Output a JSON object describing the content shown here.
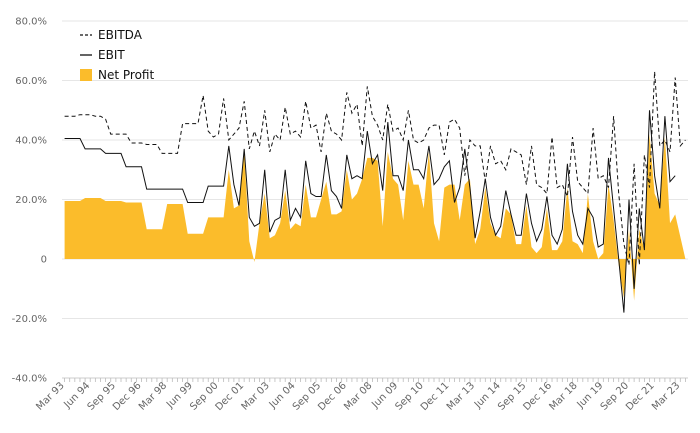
{
  "chart_data": {
    "type": "line",
    "title": "",
    "xlabel": "",
    "ylabel": "",
    "y_unit": "%",
    "ylim": [
      -40,
      80
    ],
    "y_ticks": [
      -40,
      -20,
      0,
      20,
      40,
      60,
      80
    ],
    "y_tick_labels": [
      "-40.0%",
      "-20.0%",
      "0",
      "20.0%",
      "40.0%",
      "60.0%",
      "80.0%"
    ],
    "grid": true,
    "legend_position": "top-left",
    "x_tick_labels": [
      "Mar 93",
      "Jun 94",
      "Sep 95",
      "Dec 96",
      "Mar 98",
      "Jun 99",
      "Sep 00",
      "Dec 01",
      "Mar 03",
      "Jun 04",
      "Sep 05",
      "Dec 06",
      "Mar 08",
      "Jun 09",
      "Sep 10",
      "Dec 11",
      "Mar 13",
      "Jun 14",
      "Sep 15",
      "Dec 16",
      "Mar 18",
      "Jun 19",
      "Sep 20",
      "Dec 21",
      "Mar 23"
    ],
    "x_start": "Mar 93",
    "x_frequency": "quarterly",
    "series": [
      {
        "name": "EBITDA",
        "style": "dashed",
        "color": "#111111",
        "values": [
          48,
          48,
          48,
          48.5,
          48.5,
          48.5,
          48,
          48,
          47,
          42,
          42,
          42,
          42,
          39,
          39,
          39,
          38.5,
          38.5,
          38.5,
          35.5,
          35.5,
          35.5,
          35.5,
          45.5,
          45.5,
          45.5,
          45.5,
          55,
          43,
          41,
          42,
          54,
          40,
          42,
          44,
          53,
          37,
          43,
          38,
          50,
          36,
          42,
          40,
          51,
          42,
          43,
          41,
          53,
          44,
          45,
          36,
          49,
          43,
          42,
          40,
          56,
          49,
          52,
          38,
          58,
          48,
          45,
          40,
          52,
          43,
          44,
          40,
          50,
          40,
          39,
          40,
          44,
          45,
          45,
          35,
          46,
          47,
          44,
          28,
          40,
          38,
          38,
          26,
          38,
          32,
          33,
          30,
          37,
          36,
          35,
          25,
          38,
          25,
          24,
          22,
          41,
          24,
          25,
          21,
          41,
          26,
          24,
          22,
          44,
          27,
          28,
          24,
          48,
          22,
          5,
          -2,
          32,
          -2,
          35,
          24,
          63,
          38,
          40,
          36,
          61,
          38,
          40
        ]
      },
      {
        "name": "EBIT",
        "style": "solid",
        "color": "#111111",
        "values": [
          40.5,
          40.5,
          40.5,
          40.5,
          37,
          37,
          37,
          37,
          35.5,
          35.5,
          35.5,
          35.5,
          31,
          31,
          31,
          31,
          23.5,
          23.5,
          23.5,
          23.5,
          23.5,
          23.5,
          23.5,
          23.5,
          19,
          19,
          19,
          19,
          24.5,
          24.5,
          24.5,
          24.5,
          38,
          25,
          18,
          37,
          14,
          11,
          12,
          30,
          9,
          13,
          14,
          30,
          13,
          17,
          14,
          33,
          22,
          21,
          21,
          35,
          23,
          21,
          17,
          35,
          27,
          28,
          27,
          43,
          32,
          35,
          23,
          46,
          28,
          28,
          23,
          40,
          30,
          30,
          27,
          38,
          25,
          27,
          31,
          33,
          19,
          24,
          37,
          24,
          7,
          16,
          27,
          14,
          8,
          11,
          23,
          15,
          8,
          8,
          22,
          12,
          6,
          10,
          21,
          8,
          5,
          10,
          32,
          16,
          8,
          5,
          17,
          14,
          4,
          5,
          34,
          17,
          0,
          -18,
          20,
          -10,
          17,
          3,
          50,
          28,
          17,
          48,
          26,
          28
        ]
      },
      {
        "name": "Net Profit",
        "style": "area",
        "color": "#fbbc2b",
        "values": [
          19.5,
          19.5,
          19.5,
          19.5,
          20.5,
          20.5,
          20.5,
          20.5,
          19.5,
          19.5,
          19.5,
          19.5,
          19,
          19,
          19,
          19,
          10,
          10,
          10,
          10,
          18.5,
          18.5,
          18.5,
          18.5,
          8.5,
          8.5,
          8.5,
          8.5,
          14,
          14,
          14,
          14,
          30,
          17,
          18,
          36,
          6,
          -1,
          12,
          22,
          7,
          8,
          12,
          23,
          10,
          12,
          11,
          25,
          14,
          14,
          20,
          26,
          15,
          15,
          16,
          30,
          20,
          22,
          27,
          34,
          34,
          33,
          11,
          36,
          27,
          25,
          13,
          33,
          25,
          25,
          17,
          36,
          12,
          6,
          24,
          25,
          25,
          13,
          25,
          27,
          5,
          10,
          24,
          12,
          8,
          7,
          17,
          15,
          5,
          5,
          18,
          4,
          2,
          4,
          17,
          3,
          3,
          6,
          24,
          6,
          5,
          2,
          22,
          6,
          0,
          2,
          25,
          13,
          -2,
          -13,
          10,
          -14,
          10,
          3,
          42,
          22,
          18,
          41,
          12,
          15
        ]
      }
    ]
  }
}
